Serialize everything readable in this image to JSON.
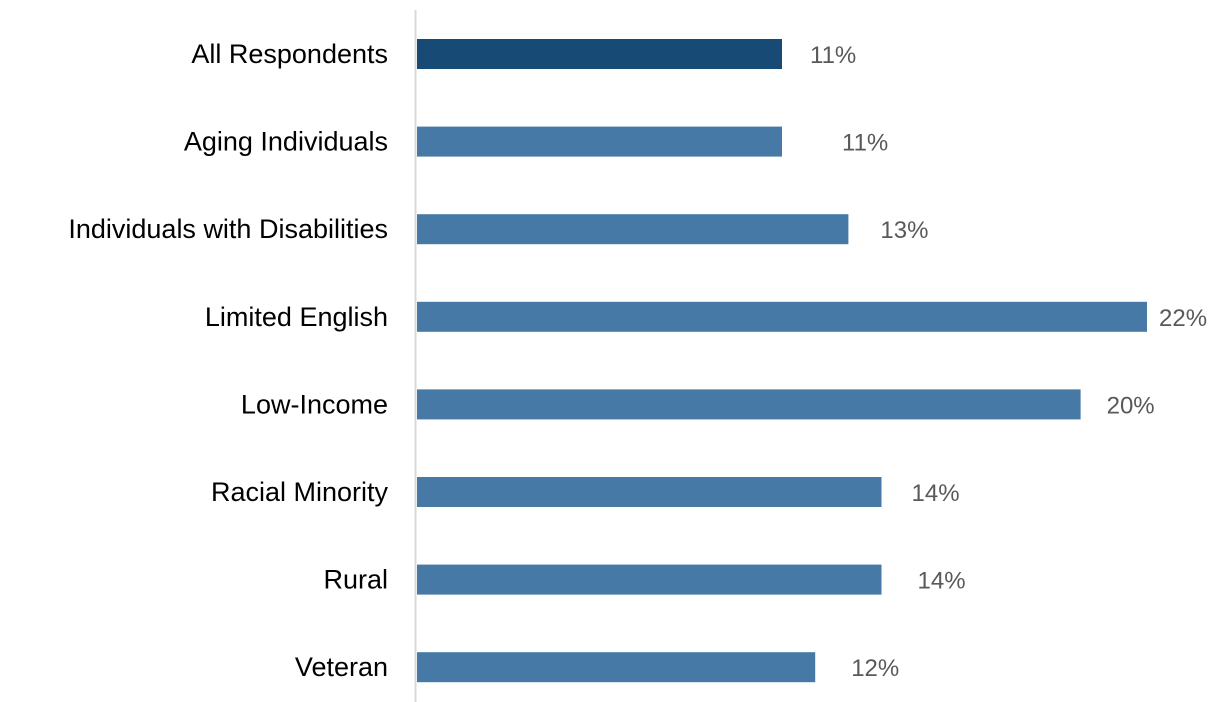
{
  "chart_data": {
    "type": "bar",
    "orientation": "horizontal",
    "title": "",
    "xlabel": "",
    "ylabel": "",
    "categories": [
      "All Respondents",
      "Aging Individuals",
      "Individuals with Disabilities",
      "Limited English",
      "Low-Income",
      "Racial Minority",
      "Rural",
      "Veteran"
    ],
    "values": [
      11,
      11,
      13,
      22,
      20,
      14,
      14,
      12
    ],
    "value_labels": [
      "11%",
      "11%",
      "13%",
      "22%",
      "20%",
      "14%",
      "14%",
      "12%"
    ],
    "xlim": [
      0,
      22
    ],
    "grid": false,
    "legend": "none",
    "colors": {
      "highlight": "#174A74",
      "bar": "#4679A5",
      "axis_line": "#D9D9D9",
      "category_text": "#000000",
      "value_text": "#595959"
    },
    "highlight_index": 0
  }
}
